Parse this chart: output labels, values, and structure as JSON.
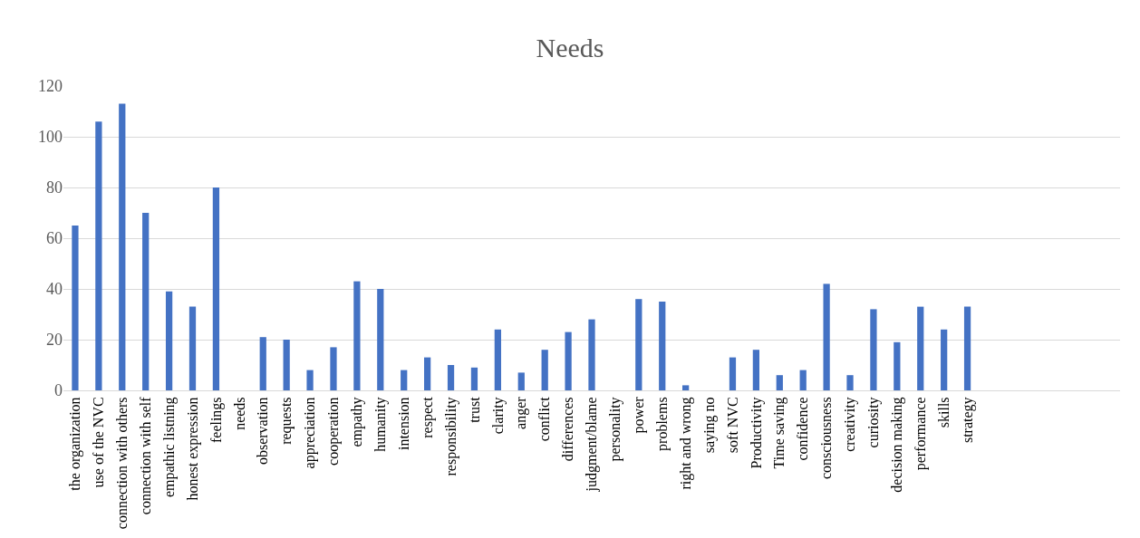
{
  "chart_data": {
    "type": "bar",
    "title": "Needs",
    "categories": [
      "the organization",
      "use of the NVC",
      "connection with others",
      "connection with self",
      "empathic listning",
      "honest expression",
      "feelings",
      "needs",
      "observation",
      "requests",
      "appreciation",
      "cooperation",
      "empathy",
      "humanity",
      "intension",
      "respect",
      "responsibility",
      "trust",
      "clarity",
      "anger",
      "conflict",
      "differences",
      "judgment/blame",
      "personality",
      "power",
      "problems",
      "right and wrong",
      "saying no",
      "soft NVC",
      "Productivity",
      "Time saving",
      "confidence",
      "consciousness",
      "creativity",
      "curiosity",
      "decision making",
      "performance",
      "skills",
      "strategy",
      null,
      null,
      null,
      null,
      null,
      null
    ],
    "values": [
      65,
      106,
      113,
      70,
      39,
      33,
      80,
      0,
      21,
      20,
      8,
      17,
      43,
      40,
      8,
      13,
      10,
      9,
      24,
      7,
      16,
      23,
      28,
      0,
      36,
      35,
      2,
      0,
      13,
      16,
      6,
      8,
      42,
      6,
      32,
      19,
      33,
      24,
      33,
      null,
      null,
      null,
      null,
      null,
      null
    ],
    "color": "#4472c4",
    "ylim": [
      0,
      120
    ],
    "yticks": [
      0,
      20,
      40,
      60,
      80,
      100,
      120
    ],
    "grid": "y"
  }
}
